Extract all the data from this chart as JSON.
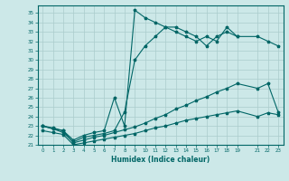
{
  "xlabel": "Humidex (Indice chaleur)",
  "background_color": "#cce8e8",
  "grid_color": "#aacccc",
  "line_color": "#006666",
  "xlim": [
    -0.5,
    23.5
  ],
  "ylim": [
    21,
    35.8
  ],
  "ytick_min": 21,
  "ytick_max": 35,
  "xticks": [
    0,
    1,
    2,
    3,
    4,
    5,
    6,
    7,
    8,
    9,
    10,
    11,
    12,
    13,
    14,
    15,
    16,
    17,
    18,
    19,
    21,
    22,
    23
  ],
  "series": [
    {
      "x": [
        0,
        1,
        2,
        3,
        4,
        5,
        6,
        7,
        8,
        9,
        10,
        11,
        12,
        13,
        14,
        15,
        16,
        17,
        18,
        19
      ],
      "y": [
        23.0,
        22.7,
        22.5,
        21.5,
        22.0,
        22.3,
        22.5,
        26.0,
        23.0,
        35.3,
        34.5,
        34.0,
        33.5,
        33.0,
        32.5,
        32.0,
        32.5,
        32.0,
        33.5,
        32.5
      ]
    },
    {
      "x": [
        0,
        1,
        2,
        3,
        4,
        5,
        6,
        7,
        8,
        9,
        10,
        11,
        12,
        13,
        14,
        15,
        16,
        17,
        18,
        19,
        21,
        22,
        23
      ],
      "y": [
        23.0,
        22.7,
        22.3,
        21.3,
        21.8,
        22.0,
        22.2,
        22.5,
        24.5,
        30.0,
        31.5,
        32.5,
        33.5,
        33.5,
        33.0,
        32.5,
        31.5,
        32.5,
        33.0,
        32.5,
        32.5,
        32.0,
        31.5
      ]
    },
    {
      "x": [
        0,
        1,
        2,
        3,
        4,
        5,
        6,
        7,
        8,
        9,
        10,
        11,
        12,
        13,
        14,
        15,
        16,
        17,
        18,
        19,
        21,
        22,
        23
      ],
      "y": [
        23.0,
        22.8,
        22.5,
        21.2,
        21.5,
        21.8,
        22.0,
        22.3,
        22.6,
        22.9,
        23.3,
        23.8,
        24.2,
        24.8,
        25.2,
        25.7,
        26.1,
        26.6,
        27.0,
        27.5,
        27.0,
        27.5,
        24.5
      ]
    },
    {
      "x": [
        0,
        1,
        2,
        3,
        4,
        5,
        6,
        7,
        8,
        9,
        10,
        11,
        12,
        13,
        14,
        15,
        16,
        17,
        18,
        19,
        21,
        22,
        23
      ],
      "y": [
        22.5,
        22.3,
        22.1,
        21.0,
        21.2,
        21.4,
        21.6,
        21.8,
        22.0,
        22.2,
        22.5,
        22.8,
        23.0,
        23.3,
        23.6,
        23.8,
        24.0,
        24.2,
        24.4,
        24.6,
        24.0,
        24.4,
        24.2
      ]
    }
  ]
}
